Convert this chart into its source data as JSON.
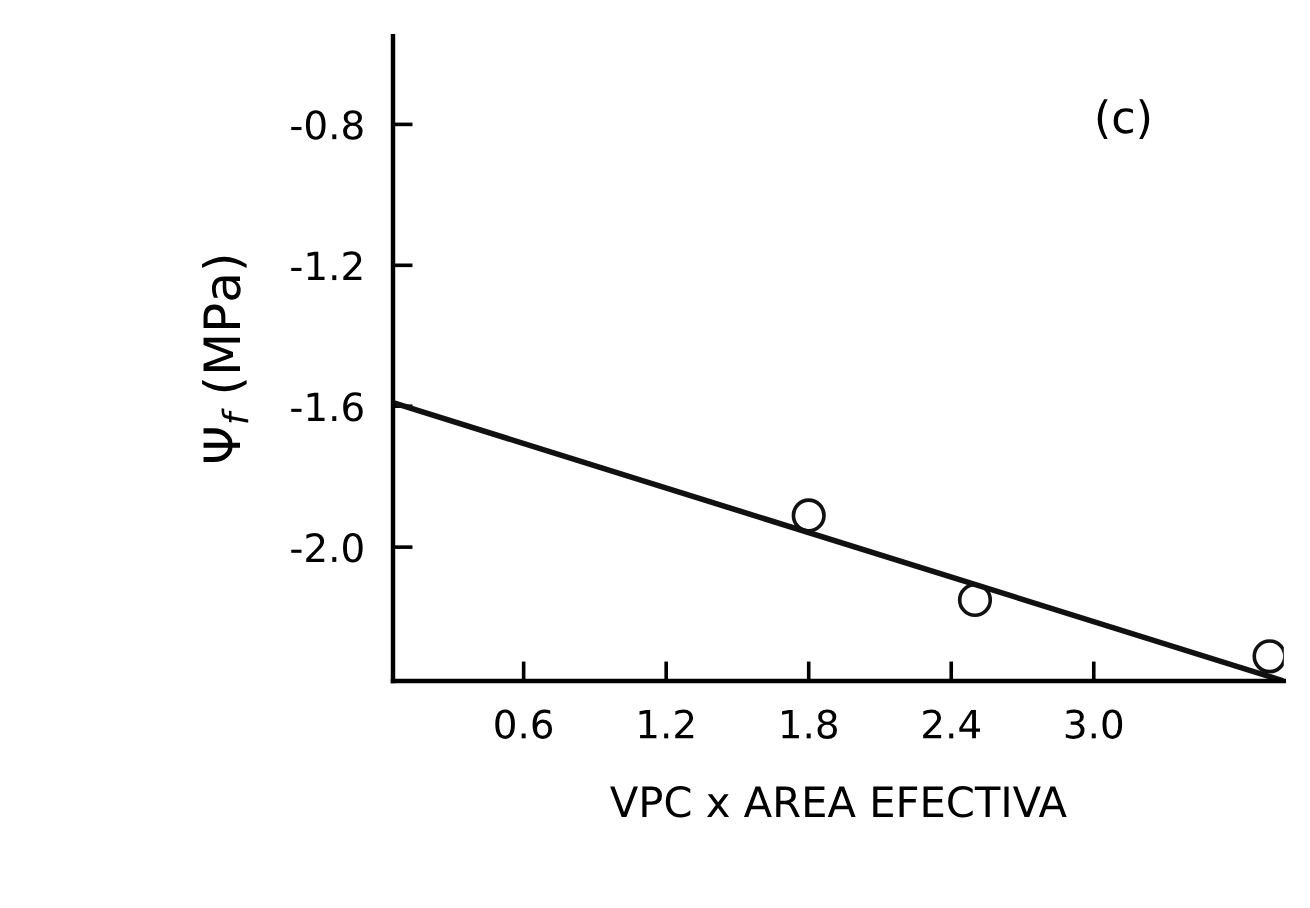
{
  "chart_data": {
    "type": "scatter",
    "xlabel": "VPC x AREA EFECTIVA",
    "ylabel": "Ψ$_{f}$ (MPa)",
    "annotations": [
      "(c)"
    ],
    "series": [
      {
        "x": [
          1.8,
          2.5,
          3.74
        ],
        "values": [
          -1.91,
          -2.15,
          -2.31
        ],
        "color": "#111111",
        "marker": "circle"
      },
      {
        "type": "line",
        "x": [
          0.05,
          3.8
        ],
        "values": [
          -1.59,
          -2.38
        ],
        "color": "#111111",
        "marker": "none"
      }
    ],
    "xlim": [
      0.05,
      3.8
    ],
    "ylim": [
      -2.38,
      -0.55
    ],
    "xticks": [
      0.6,
      1.2,
      1.8,
      2.4,
      {
        "value": 3.0,
        "label": "3.0"
      }
    ],
    "yticks": [
      -0.8,
      -1.2,
      -1.6,
      {
        "value": -2.0,
        "label": "-2.0"
      }
    ],
    "grid": false,
    "legend": false
  }
}
